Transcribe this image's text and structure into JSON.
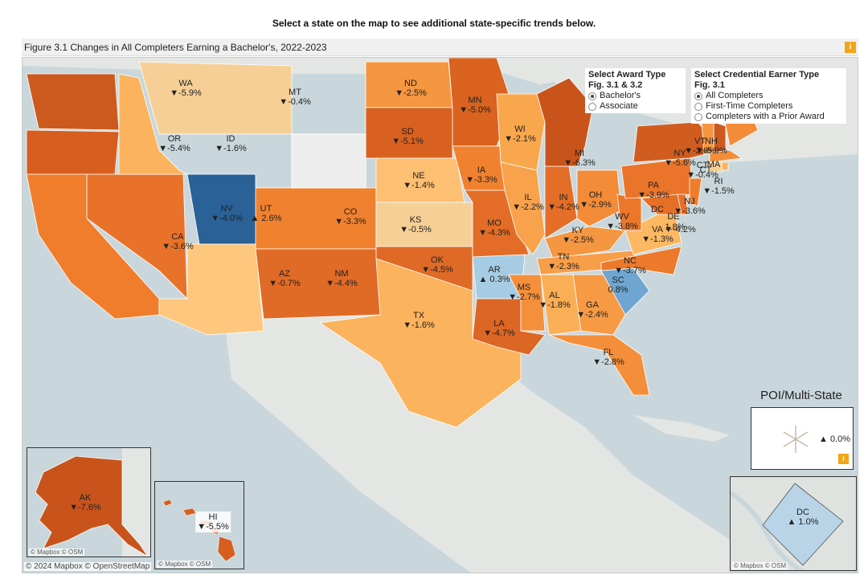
{
  "instruction": "Select a state on the map to see additional state-specific trends below.",
  "figure_title": "Figure 3.1 Changes in All Completers Earning a Bachelor's, 2022-2023",
  "info_icon": "info-icon",
  "award_panel": {
    "title": "Select Award Type",
    "subtitle": "Fig. 3.1 & 3.2",
    "options": [
      {
        "label": "Bachelor's",
        "selected": true
      },
      {
        "label": "Associate",
        "selected": false
      }
    ]
  },
  "earner_panel": {
    "title": "Select Credential Earner Type",
    "subtitle": "Fig. 3.1",
    "options": [
      {
        "label": "All Completers",
        "selected": true
      },
      {
        "label": "First-Time Completers",
        "selected": false
      },
      {
        "label": "Completers with a Prior Award",
        "selected": false
      }
    ]
  },
  "states": [
    {
      "code": "WA",
      "value": "▼-5.9%",
      "fill": "#cc5a1e"
    },
    {
      "code": "OR",
      "value": "▼-5.4%",
      "fill": "#d65f1f"
    },
    {
      "code": "CA",
      "value": "▼-3.6%",
      "fill": "#ef7d2c"
    },
    {
      "code": "NV",
      "value": "▼-4.0%",
      "fill": "#e8722a"
    },
    {
      "code": "ID",
      "value": "▼-1.6%",
      "fill": "#fbb35e"
    },
    {
      "code": "MT",
      "value": "▼-0.4%",
      "fill": "#f6cf96"
    },
    {
      "code": "UT",
      "value": "▲ 2.6%",
      "fill": "#2a6196"
    },
    {
      "code": "AZ",
      "value": "▼-0.7%",
      "fill": "#fdc77d"
    },
    {
      "code": "CO",
      "value": "▼-3.3%",
      "fill": "#f0812f"
    },
    {
      "code": "NM",
      "value": "▼-4.4%",
      "fill": "#e06b26"
    },
    {
      "code": "ND",
      "value": "▼-2.5%",
      "fill": "#f59640"
    },
    {
      "code": "SD",
      "value": "▼-5.1%",
      "fill": "#d8611f"
    },
    {
      "code": "NE",
      "value": "▼-1.4%",
      "fill": "#fdbf72"
    },
    {
      "code": "KS",
      "value": "▼-0.5%",
      "fill": "#f6cf96"
    },
    {
      "code": "OK",
      "value": "▼-4.5%",
      "fill": "#df6a25"
    },
    {
      "code": "TX",
      "value": "▼-1.6%",
      "fill": "#fbb35e"
    },
    {
      "code": "MN",
      "value": "▼-5.0%",
      "fill": "#d9631f"
    },
    {
      "code": "IA",
      "value": "▼-3.3%",
      "fill": "#f0812f"
    },
    {
      "code": "MO",
      "value": "▼-4.3%",
      "fill": "#e36d27"
    },
    {
      "code": "AR",
      "value": "▲ 0.3%",
      "fill": "#a6cce3"
    },
    {
      "code": "LA",
      "value": "▼-4.7%",
      "fill": "#dc6623"
    },
    {
      "code": "WI",
      "value": "▼-2.1%",
      "fill": "#f9a74d"
    },
    {
      "code": "IL",
      "value": "▼-2.2%",
      "fill": "#f8a24b"
    },
    {
      "code": "IN",
      "value": "▼-4.2%",
      "fill": "#e46e28"
    },
    {
      "code": "MI",
      "value": "▼-6.3%",
      "fill": "#c9541b"
    },
    {
      "code": "OH",
      "value": "▼-2.9%",
      "fill": "#f38b38"
    },
    {
      "code": "KY",
      "value": "▼-2.5%",
      "fill": "#f59640"
    },
    {
      "code": "TN",
      "value": "▼-2.3%",
      "fill": "#f79e48"
    },
    {
      "code": "MS",
      "value": "▼-2.7%",
      "fill": "#f4903b"
    },
    {
      "code": "AL",
      "value": "▼-1.8%",
      "fill": "#faae55"
    },
    {
      "code": "GA",
      "value": "▼-2.4%",
      "fill": "#f69a44"
    },
    {
      "code": "FL",
      "value": "▼-2.8%",
      "fill": "#f48e3a"
    },
    {
      "code": "SC",
      "value": "0.8%",
      "fill": "#6fa6d1"
    },
    {
      "code": "NC",
      "value": "▼-3.7%",
      "fill": "#ed7a2c"
    },
    {
      "code": "VA",
      "value": "▼-1.3%",
      "fill": "#fcb862"
    },
    {
      "code": "WV",
      "value": "▼-3.8%",
      "fill": "#ec772b"
    },
    {
      "code": "PA",
      "value": "▼-3.9%",
      "fill": "#ea742a"
    },
    {
      "code": "NY",
      "value": "▼-5.6%",
      "fill": "#d05d1f"
    },
    {
      "code": "NJ",
      "value": "▼-3.6%",
      "fill": "#ef7d2c"
    },
    {
      "code": "MD",
      "value": "",
      "fill": "#e56f27"
    },
    {
      "code": "DE",
      "value": "",
      "fill": "#e56f27"
    },
    {
      "code": "MA",
      "value": "",
      "fill": "#f48e3a"
    },
    {
      "code": "NH",
      "value": "▼-5.9%",
      "fill": "#cc5a1e"
    },
    {
      "code": "VT",
      "value": "▼-2.6%",
      "fill": "#f59640"
    },
    {
      "code": "ME",
      "value": "",
      "fill": "#f38b38"
    },
    {
      "code": "CT",
      "value": "▼-0.4%",
      "fill": "#f6cf96"
    },
    {
      "code": "RI",
      "value": "▼-1.5%",
      "fill": "#fbb35e"
    }
  ],
  "extra_labels": [
    {
      "text": "1.8%"
    },
    {
      "text": "▼-4.2%"
    },
    {
      "text": "MA"
    },
    {
      "text": "CT"
    },
    {
      "text": "DC"
    },
    {
      "text": "DE"
    }
  ],
  "alaska": {
    "code": "AK",
    "value": "▼-7.6%",
    "fill": "#c9541b"
  },
  "hawaii": {
    "code": "HI",
    "value": "▼-5.5%",
    "fill": "#d65f1f"
  },
  "dc_inset": {
    "code": "DC",
    "value": "▲ 1.0%",
    "fill": "#b9d4e6"
  },
  "poi": {
    "title": "POI/Multi-State",
    "value": "▲ 0.0%"
  },
  "inset_attribution": "© Mapbox © OSM",
  "attribution": "© 2024 Mapbox © OpenStreetMap"
}
